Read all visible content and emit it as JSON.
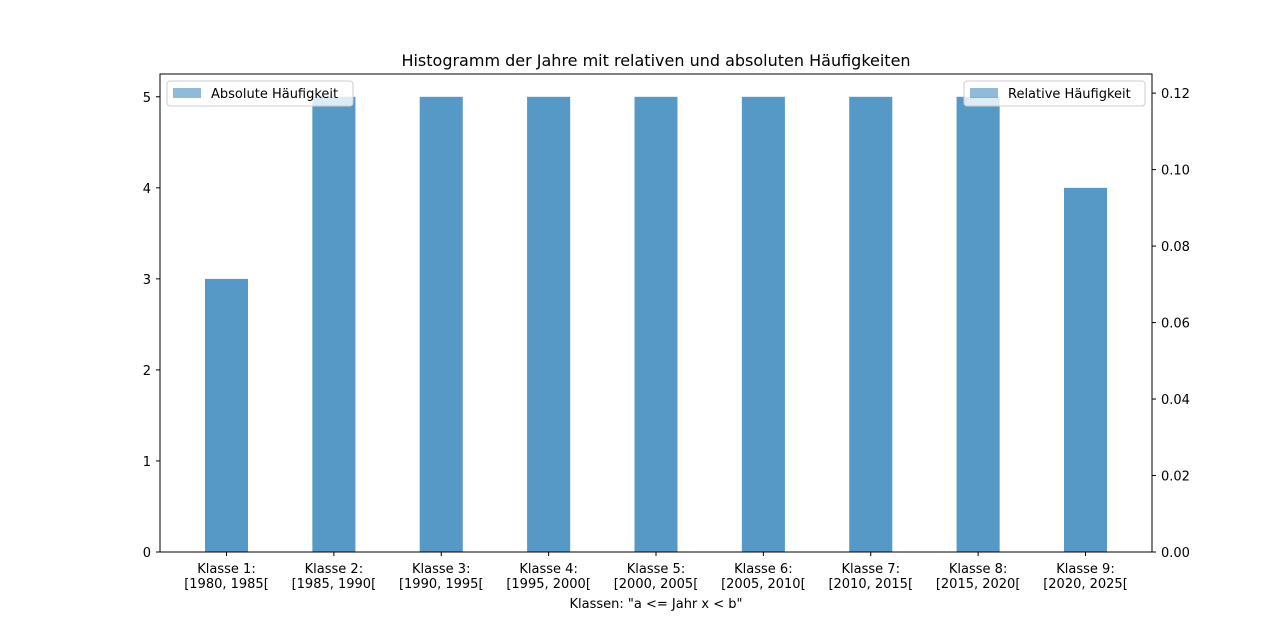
{
  "chart_data": {
    "type": "bar",
    "title": "Histogramm der Jahre mit relativen und absoluten Häufigkeiten",
    "xlabel": "Klassen: \"a <= Jahr x < b\"",
    "categories": [
      [
        "Klasse 1:",
        "[1980, 1985["
      ],
      [
        "Klasse 2:",
        "[1985, 1990["
      ],
      [
        "Klasse 3:",
        "[1990, 1995["
      ],
      [
        "Klasse 4:",
        "[1995, 2000["
      ],
      [
        "Klasse 5:",
        "[2000, 2005["
      ],
      [
        "Klasse 6:",
        "[2005, 2010["
      ],
      [
        "Klasse 7:",
        "[2010, 2015["
      ],
      [
        "Klasse 8:",
        "[2015, 2020["
      ],
      [
        "Klasse 9:",
        "[2020, 2025["
      ]
    ],
    "series": [
      {
        "name": "Absolute Häufigkeit",
        "axis": "left",
        "color": "#1f77b4",
        "opacity": 0.5,
        "values": [
          3,
          5,
          5,
          5,
          5,
          5,
          5,
          5,
          4
        ]
      },
      {
        "name": "Relative Häufigkeit",
        "axis": "right",
        "color": "#1f77b4",
        "opacity": 0.5,
        "values": [
          0.0714,
          0.119,
          0.119,
          0.119,
          0.119,
          0.119,
          0.119,
          0.119,
          0.0952
        ]
      }
    ],
    "left_axis": {
      "ylim": [
        0,
        5.25
      ],
      "ticks": [
        "0",
        "1",
        "2",
        "3",
        "4",
        "5"
      ]
    },
    "right_axis": {
      "ylim": [
        0,
        0.125
      ],
      "ticks": [
        "0.00",
        "0.02",
        "0.04",
        "0.06",
        "0.08",
        "0.10",
        "0.12"
      ]
    },
    "legend": [
      {
        "label": "Absolute Häufigkeit",
        "placement": "upper-left"
      },
      {
        "label": "Relative Häufigkeit",
        "placement": "upper-right"
      }
    ],
    "grid": false
  }
}
